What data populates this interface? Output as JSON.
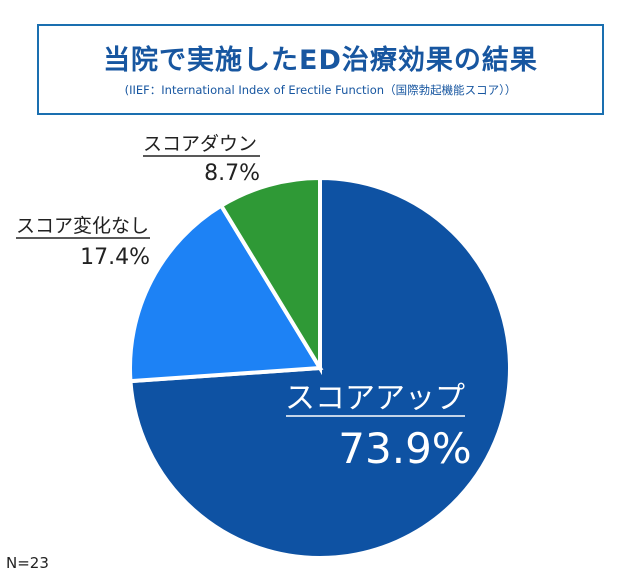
{
  "header": {
    "title": "当院で実施したED治療効果の結果",
    "subtitle": "(IIEF：International Index of Erectile Function（国際勃起機能スコア））"
  },
  "footnote": "N=23",
  "colors": {
    "title_text": "#1756a0",
    "title_border": "#1a6fb0",
    "slice_up": "#0e52a3",
    "slice_nochange": "#1d82f5",
    "slice_down": "#2f9936",
    "separator": "#ffffff"
  },
  "chart_data": {
    "type": "pie",
    "title": "当院で実施したED治療効果の結果",
    "slices": [
      {
        "label": "スコアアップ",
        "value": 73.9,
        "value_label": "73.9%",
        "color": "#0e52a3"
      },
      {
        "label": "スコア変化なし",
        "value": 17.4,
        "value_label": "17.4%",
        "color": "#1d82f5"
      },
      {
        "label": "スコアダウン",
        "value": 8.7,
        "value_label": "8.7%",
        "color": "#2f9936"
      }
    ],
    "start_angle": "12 o'clock",
    "direction": "clockwise",
    "legend": "none",
    "n": 23
  }
}
